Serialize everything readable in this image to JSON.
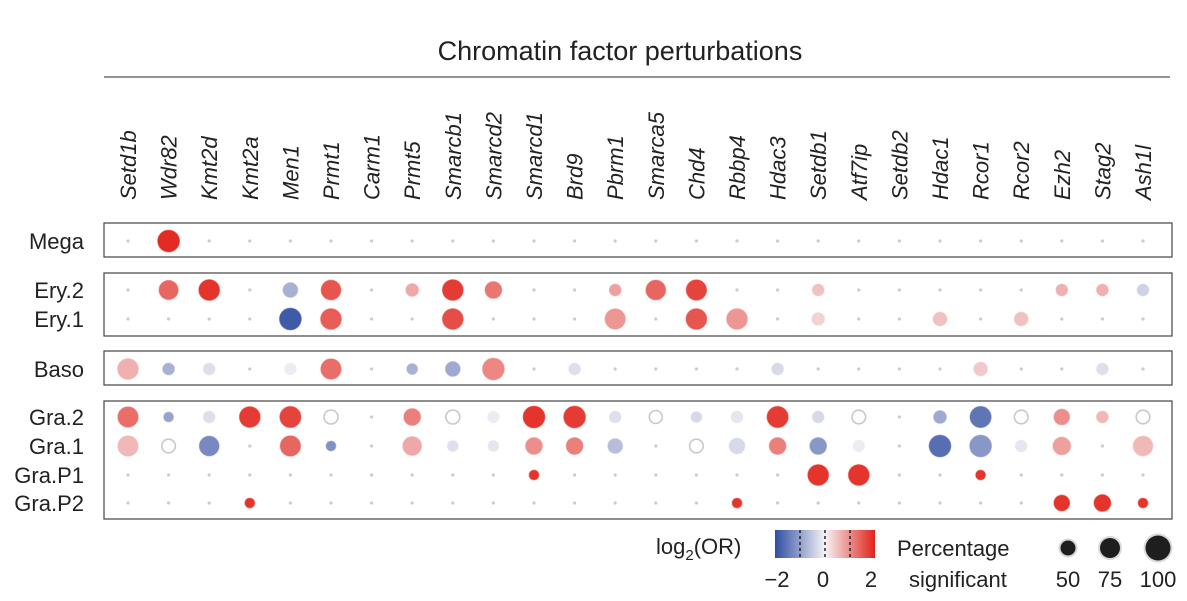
{
  "chart_data": {
    "type": "dot",
    "title": "Chromatin factor perturbations",
    "categories": [
      "Setd1b",
      "Wdr82",
      "Kmt2d",
      "Kmt2a",
      "Men1",
      "Prmt1",
      "Carm1",
      "Prmt5",
      "Smarcb1",
      "Smarcd2",
      "Smarcd1",
      "Brd9",
      "Pbrm1",
      "Smarca5",
      "Chd4",
      "Rbbp4",
      "Hdac3",
      "Setdb1",
      "Atf7ip",
      "Setdb2",
      "Hdac1",
      "Rcor1",
      "Rcor2",
      "Ezh2",
      "Stag2",
      "Ash1l"
    ],
    "groups": [
      {
        "rows": [
          "Mega"
        ]
      },
      {
        "rows": [
          "Ery.2",
          "Ery.1"
        ]
      },
      {
        "rows": [
          "Baso"
        ]
      },
      {
        "rows": [
          "Gra.2",
          "Gra.1",
          "Gra.P1",
          "Gra.P2"
        ]
      }
    ],
    "points": [
      {
        "row": "Mega",
        "gene": "Wdr82",
        "lor": 2.4,
        "pct": 85
      },
      {
        "row": "Ery.2",
        "gene": "Wdr82",
        "lor": 1.7,
        "pct": 72
      },
      {
        "row": "Ery.2",
        "gene": "Kmt2d",
        "lor": 2.3,
        "pct": 80
      },
      {
        "row": "Ery.2",
        "gene": "Men1",
        "lor": -1.0,
        "pct": 50
      },
      {
        "row": "Ery.2",
        "gene": "Prmt1",
        "lor": 1.9,
        "pct": 75
      },
      {
        "row": "Ery.2",
        "gene": "Prmt5",
        "lor": 0.9,
        "pct": 40
      },
      {
        "row": "Ery.2",
        "gene": "Smarcb1",
        "lor": 2.2,
        "pct": 80
      },
      {
        "row": "Ery.2",
        "gene": "Smarcd2",
        "lor": 1.5,
        "pct": 60
      },
      {
        "row": "Ery.2",
        "gene": "Pbrm1",
        "lor": 1.0,
        "pct": 35
      },
      {
        "row": "Ery.2",
        "gene": "Smarca5",
        "lor": 1.7,
        "pct": 75
      },
      {
        "row": "Ery.2",
        "gene": "Chd4",
        "lor": 2.1,
        "pct": 78
      },
      {
        "row": "Ery.2",
        "gene": "Setdb1",
        "lor": 0.6,
        "pct": 35
      },
      {
        "row": "Ery.2",
        "gene": "Ezh2",
        "lor": 0.8,
        "pct": 35
      },
      {
        "row": "Ery.2",
        "gene": "Stag2",
        "lor": 0.8,
        "pct": 35
      },
      {
        "row": "Ery.2",
        "gene": "Ash1l",
        "lor": -0.5,
        "pct": 35
      },
      {
        "row": "Ery.1",
        "gene": "Men1",
        "lor": -2.3,
        "pct": 85
      },
      {
        "row": "Ery.1",
        "gene": "Prmt1",
        "lor": 1.8,
        "pct": 80
      },
      {
        "row": "Ery.1",
        "gene": "Smarcb1",
        "lor": 2.0,
        "pct": 80
      },
      {
        "row": "Ery.1",
        "gene": "Pbrm1",
        "lor": 1.1,
        "pct": 78
      },
      {
        "row": "Ery.1",
        "gene": "Chd4",
        "lor": 1.9,
        "pct": 80
      },
      {
        "row": "Ery.1",
        "gene": "Rbbp4",
        "lor": 1.1,
        "pct": 80
      },
      {
        "row": "Ery.1",
        "gene": "Setdb1",
        "lor": 0.4,
        "pct": 40
      },
      {
        "row": "Ery.1",
        "gene": "Hdac1",
        "lor": 0.6,
        "pct": 45
      },
      {
        "row": "Ery.1",
        "gene": "Rcor2",
        "lor": 0.6,
        "pct": 45
      },
      {
        "row": "Baso",
        "gene": "Setd1b",
        "lor": 0.8,
        "pct": 80
      },
      {
        "row": "Baso",
        "gene": "Wdr82",
        "lor": -1.0,
        "pct": 35
      },
      {
        "row": "Baso",
        "gene": "Kmt2d",
        "lor": -0.3,
        "pct": 35
      },
      {
        "row": "Baso",
        "gene": "Men1",
        "lor": -0.1,
        "pct": 35
      },
      {
        "row": "Baso",
        "gene": "Prmt1",
        "lor": 1.6,
        "pct": 78
      },
      {
        "row": "Baso",
        "gene": "Prmt5",
        "lor": -1.0,
        "pct": 30
      },
      {
        "row": "Baso",
        "gene": "Smarcb1",
        "lor": -1.1,
        "pct": 50
      },
      {
        "row": "Baso",
        "gene": "Smarcd2",
        "lor": 1.3,
        "pct": 85
      },
      {
        "row": "Baso",
        "gene": "Brd9",
        "lor": -0.3,
        "pct": 35
      },
      {
        "row": "Baso",
        "gene": "Hdac3",
        "lor": -0.4,
        "pct": 35
      },
      {
        "row": "Baso",
        "gene": "Rcor1",
        "lor": 0.5,
        "pct": 45
      },
      {
        "row": "Baso",
        "gene": "Stag2",
        "lor": -0.3,
        "pct": 35
      },
      {
        "row": "Gra.2",
        "gene": "Setd1b",
        "lor": 1.6,
        "pct": 78
      },
      {
        "row": "Gra.2",
        "gene": "Wdr82",
        "lor": -1.2,
        "pct": 25
      },
      {
        "row": "Gra.2",
        "gene": "Kmt2d",
        "lor": -0.3,
        "pct": 35
      },
      {
        "row": "Gra.2",
        "gene": "Kmt2a",
        "lor": 2.2,
        "pct": 80
      },
      {
        "row": "Gra.2",
        "gene": "Men1",
        "lor": 2.1,
        "pct": 82
      },
      {
        "row": "Gra.2",
        "gene": "Prmt1",
        "lor": 0.0,
        "pct": 40
      },
      {
        "row": "Gra.2",
        "gene": "Prmt5",
        "lor": 1.4,
        "pct": 60
      },
      {
        "row": "Gra.2",
        "gene": "Smarcb1",
        "lor": 0.0,
        "pct": 40
      },
      {
        "row": "Gra.2",
        "gene": "Smarcd2",
        "lor": -0.1,
        "pct": 35
      },
      {
        "row": "Gra.2",
        "gene": "Smarcd1",
        "lor": 2.3,
        "pct": 85
      },
      {
        "row": "Gra.2",
        "gene": "Brd9",
        "lor": 2.2,
        "pct": 85
      },
      {
        "row": "Gra.2",
        "gene": "Pbrm1",
        "lor": -0.3,
        "pct": 35
      },
      {
        "row": "Gra.2",
        "gene": "Smarca5",
        "lor": 0.0,
        "pct": 35
      },
      {
        "row": "Gra.2",
        "gene": "Chd4",
        "lor": -0.4,
        "pct": 30
      },
      {
        "row": "Gra.2",
        "gene": "Rbbp4",
        "lor": -0.2,
        "pct": 35
      },
      {
        "row": "Gra.2",
        "gene": "Hdac3",
        "lor": 2.2,
        "pct": 82
      },
      {
        "row": "Gra.2",
        "gene": "Setdb1",
        "lor": -0.4,
        "pct": 35
      },
      {
        "row": "Gra.2",
        "gene": "Atf7ip",
        "lor": 0.0,
        "pct": 38
      },
      {
        "row": "Gra.2",
        "gene": "Hdac1",
        "lor": -1.1,
        "pct": 40
      },
      {
        "row": "Gra.2",
        "gene": "Rcor1",
        "lor": -1.9,
        "pct": 82
      },
      {
        "row": "Gra.2",
        "gene": "Rcor2",
        "lor": 0.0,
        "pct": 38
      },
      {
        "row": "Gra.2",
        "gene": "Ezh2",
        "lor": 1.2,
        "pct": 55
      },
      {
        "row": "Gra.2",
        "gene": "Stag2",
        "lor": 0.7,
        "pct": 35
      },
      {
        "row": "Gra.2",
        "gene": "Ash1l",
        "lor": 0.0,
        "pct": 38
      },
      {
        "row": "Gra.1",
        "gene": "Setd1b",
        "lor": 0.7,
        "pct": 78
      },
      {
        "row": "Gra.1",
        "gene": "Wdr82",
        "lor": 0.0,
        "pct": 38
      },
      {
        "row": "Gra.1",
        "gene": "Kmt2d",
        "lor": -1.6,
        "pct": 75
      },
      {
        "row": "Gra.1",
        "gene": "Men1",
        "lor": 1.7,
        "pct": 78
      },
      {
        "row": "Gra.1",
        "gene": "Prmt1",
        "lor": -1.5,
        "pct": 25
      },
      {
        "row": "Gra.1",
        "gene": "Prmt5",
        "lor": 0.9,
        "pct": 70
      },
      {
        "row": "Gra.1",
        "gene": "Smarcb1",
        "lor": -0.3,
        "pct": 30
      },
      {
        "row": "Gra.1",
        "gene": "Smarcd2",
        "lor": -0.2,
        "pct": 30
      },
      {
        "row": "Gra.1",
        "gene": "Smarcd1",
        "lor": 1.2,
        "pct": 60
      },
      {
        "row": "Gra.1",
        "gene": "Brd9",
        "lor": 1.4,
        "pct": 60
      },
      {
        "row": "Gra.1",
        "gene": "Pbrm1",
        "lor": -0.8,
        "pct": 50
      },
      {
        "row": "Gra.1",
        "gene": "Chd4",
        "lor": 0.0,
        "pct": 38
      },
      {
        "row": "Gra.1",
        "gene": "Rbbp4",
        "lor": -0.4,
        "pct": 55
      },
      {
        "row": "Gra.1",
        "gene": "Hdac3",
        "lor": 1.4,
        "pct": 60
      },
      {
        "row": "Gra.1",
        "gene": "Setdb1",
        "lor": -1.4,
        "pct": 60
      },
      {
        "row": "Gra.1",
        "gene": "Atf7ip",
        "lor": -0.1,
        "pct": 35
      },
      {
        "row": "Gra.1",
        "gene": "Hdac1",
        "lor": -2.0,
        "pct": 85
      },
      {
        "row": "Gra.1",
        "gene": "Rcor1",
        "lor": -1.4,
        "pct": 85
      },
      {
        "row": "Gra.1",
        "gene": "Rcor2",
        "lor": -0.2,
        "pct": 35
      },
      {
        "row": "Gra.1",
        "gene": "Ezh2",
        "lor": 1.0,
        "pct": 65
      },
      {
        "row": "Gra.1",
        "gene": "Ash1l",
        "lor": 0.7,
        "pct": 75
      },
      {
        "row": "Gra.P1",
        "gene": "Smarcd1",
        "lor": 2.3,
        "pct": 25
      },
      {
        "row": "Gra.P1",
        "gene": "Setdb1",
        "lor": 2.3,
        "pct": 80
      },
      {
        "row": "Gra.P1",
        "gene": "Atf7ip",
        "lor": 2.3,
        "pct": 80
      },
      {
        "row": "Gra.P1",
        "gene": "Rcor1",
        "lor": 2.3,
        "pct": 25
      },
      {
        "row": "Gra.P2",
        "gene": "Kmt2a",
        "lor": 2.3,
        "pct": 25
      },
      {
        "row": "Gra.P2",
        "gene": "Rbbp4",
        "lor": 2.3,
        "pct": 25
      },
      {
        "row": "Gra.P2",
        "gene": "Ezh2",
        "lor": 2.3,
        "pct": 55
      },
      {
        "row": "Gra.P2",
        "gene": "Stag2",
        "lor": 2.3,
        "pct": 60
      },
      {
        "row": "Gra.P2",
        "gene": "Ash1l",
        "lor": 2.3,
        "pct": 25
      }
    ],
    "color_scale": {
      "label_prefix": "log",
      "label_sub": "2",
      "label_suffix": "(OR)",
      "ticks": [
        "−2",
        "0",
        "2"
      ],
      "min": -2.5,
      "max": 2.5,
      "low_color": "#2f4ea1",
      "mid_color": "#f6f3f6",
      "high_color": "#e2231a"
    },
    "size_legend": {
      "label_line1": "Percentage",
      "label_line2": "significant",
      "values": [
        "50",
        "75",
        "100"
      ]
    },
    "background_dot_color": "#cccccc"
  }
}
